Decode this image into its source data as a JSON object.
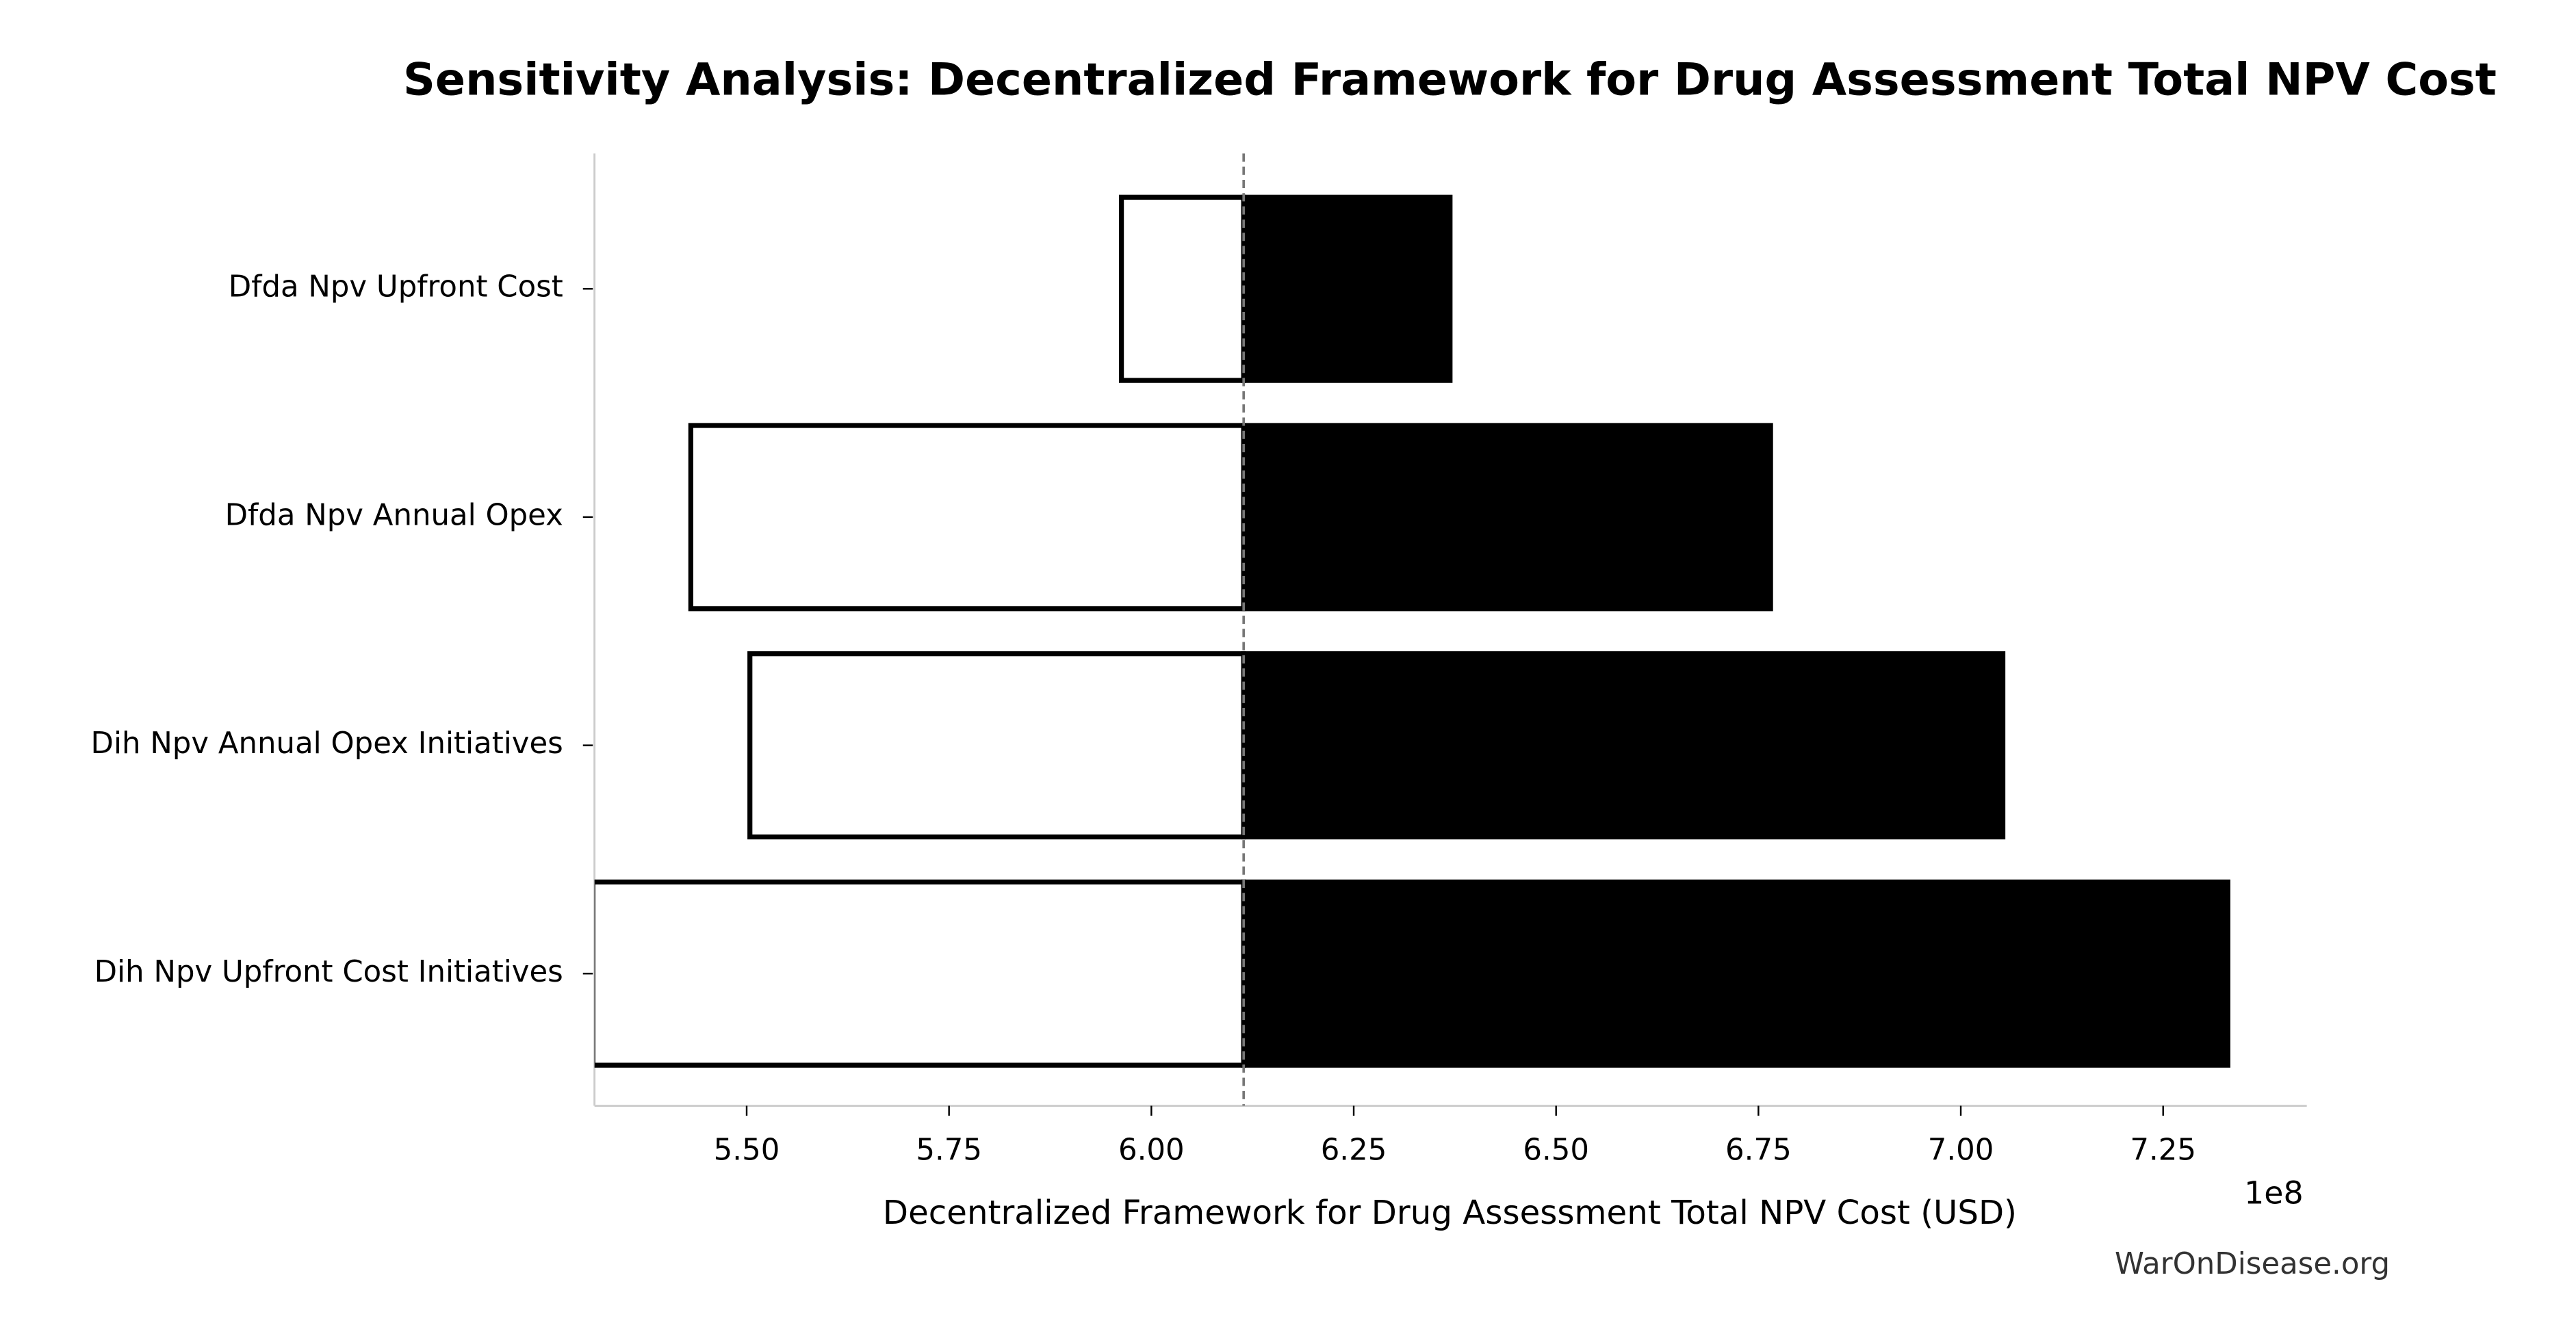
{
  "chart_data": {
    "type": "tornado",
    "title": "Sensitivity Analysis: Decentralized Framework for Drug Assessment Total NPV Cost",
    "x_label": "Decentralized Framework for Drug Assessment Total NPV Cost (USD)",
    "x_offset_label": "1e8",
    "watermark": "WarOnDisease.org",
    "categories": [
      "Dfda Npv Upfront Cost",
      "Dfda Npv Annual Opex",
      "Dih Npv Annual Opex Initiatives",
      "Dih Npv Upfront Cost Initiatives"
    ],
    "baseline": 6.114,
    "series": [
      {
        "color": "#ffffff",
        "edgecolor": "#000000",
        "values": [
          5.963,
          5.431,
          5.504,
          5.31
        ]
      },
      {
        "color": "#000000",
        "edgecolor": "#000000",
        "values": [
          6.369,
          6.765,
          7.052,
          7.33
        ]
      }
    ],
    "xlim": [
      5.312,
      7.4275
    ],
    "xticks": [
      {
        "value": 5.5,
        "label": "5.50"
      },
      {
        "value": 5.75,
        "label": "5.75"
      },
      {
        "value": 6.0,
        "label": "6.00"
      },
      {
        "value": 6.25,
        "label": "6.25"
      },
      {
        "value": 6.5,
        "label": "6.50"
      },
      {
        "value": 6.75,
        "label": "6.75"
      },
      {
        "value": 7.0,
        "label": "7.00"
      },
      {
        "value": 7.25,
        "label": "7.25"
      }
    ]
  }
}
